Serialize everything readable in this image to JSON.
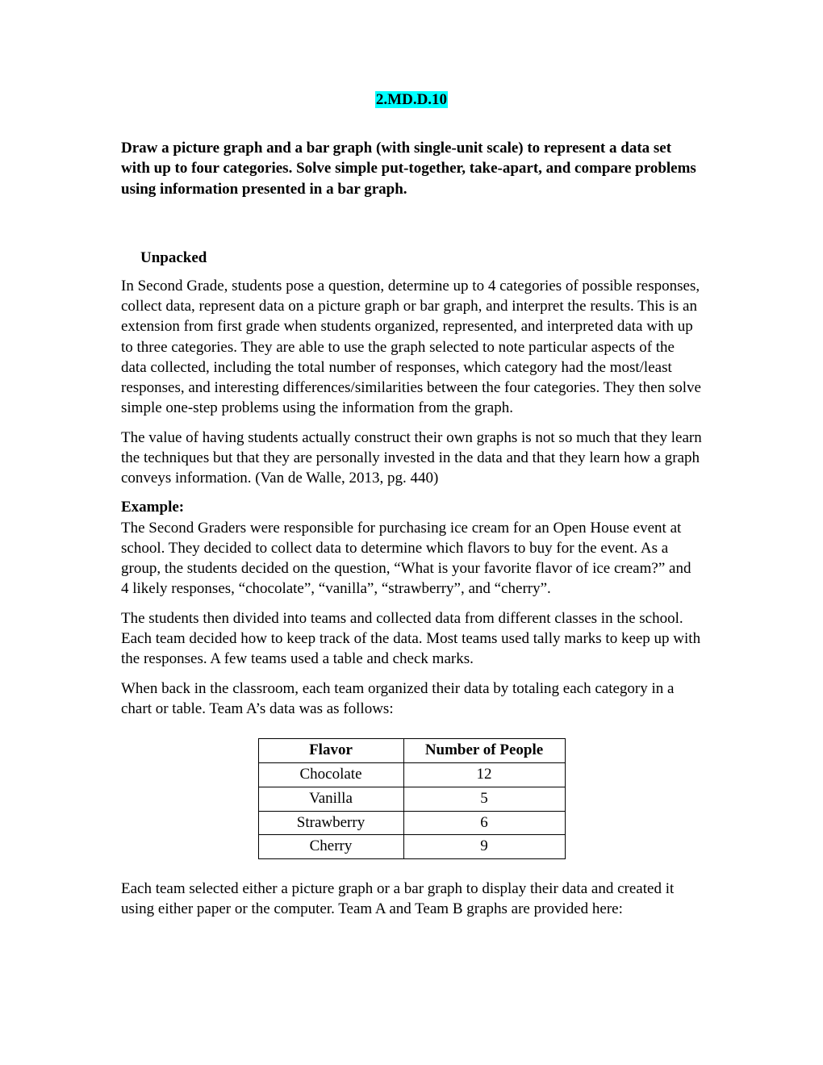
{
  "standard": {
    "code": "2.MD.D.10",
    "text": "Draw a picture graph and a bar graph (with single-unit scale) to represent a data set with up to four categories. Solve simple put-together, take-apart, and compare problems using information presented in a bar graph."
  },
  "unpacked": {
    "heading": "Unpacked",
    "para1": "In Second Grade, students pose a question, determine up to 4 categories of possible responses, collect data, represent data on a picture graph or bar graph, and interpret the results. This is an extension from first grade when students organized, represented, and interpreted data with up to three categories. They are able to use the graph selected to note particular aspects of the data collected, including the total number of responses, which category had the most/least responses, and interesting differences/similarities between the four categories. They then solve simple one-step problems using the information from the graph.",
    "para2": "The value of having students actually construct their own graphs is not so much that they learn the techniques but that they are personally invested in the data and that they learn how a graph conveys information.  (Van de Walle, 2013, pg. 440)"
  },
  "example": {
    "label": "Example:",
    "para1": "The Second Graders were responsible for purchasing ice cream for an Open House event at school. They decided to collect data to determine which flavors to buy for the event. As a group, the students decided on the question, “What is your favorite flavor of ice cream?” and 4 likely responses, “chocolate”, “vanilla”, “strawberry”, and “cherry”.",
    "para2": "The students then divided into teams and collected data from different classes in the school. Each team decided how to keep track of the data. Most teams used tally marks to keep up with the responses. A few teams used a table and check marks.",
    "para3": "When back in the classroom, each team organized their data by totaling each category in a chart or table. Team A’s data was as follows:"
  },
  "table": {
    "headers": [
      "Flavor",
      "Number of People"
    ],
    "rows": [
      [
        "Chocolate",
        "12"
      ],
      [
        "Vanilla",
        "5"
      ],
      [
        "Strawberry",
        "6"
      ],
      [
        "Cherry",
        "9"
      ]
    ]
  },
  "closing": {
    "para": "Each team selected either a picture graph or a bar graph to display their data and created it using either paper or the computer. Team A and Team B graphs are provided here:"
  }
}
